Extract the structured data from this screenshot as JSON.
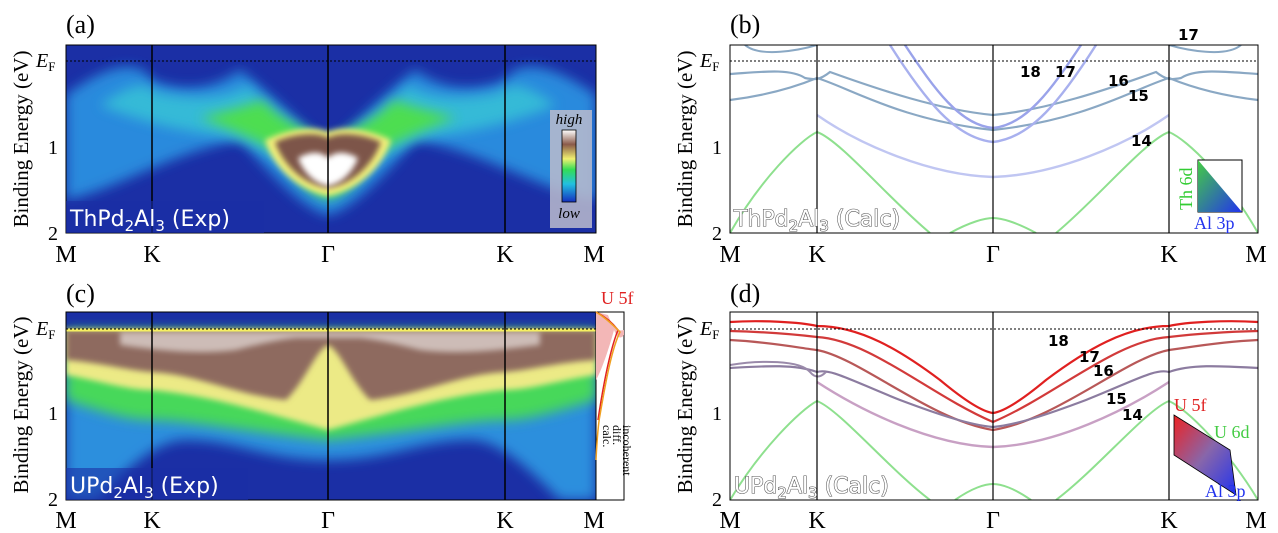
{
  "figure": {
    "panels": [
      {
        "id": "a",
        "label": "(a)",
        "kind": "exp",
        "sample_main": "ThPd",
        "sample_sub1": "2",
        "sample_mid": "Al",
        "sample_sub2": "3",
        "sample_tail": " (Exp)"
      },
      {
        "id": "b",
        "label": "(b)",
        "kind": "calc",
        "sample_main": "ThPd",
        "sample_sub1": "2",
        "sample_mid": "Al",
        "sample_sub2": "3",
        "sample_tail": " (Calc)"
      },
      {
        "id": "c",
        "label": "(c)",
        "kind": "exp",
        "sample_main": "UPd",
        "sample_sub1": "2",
        "sample_mid": "Al",
        "sample_sub2": "3",
        "sample_tail": " (Exp)"
      },
      {
        "id": "d",
        "label": "(d)",
        "kind": "calc",
        "sample_main": "UPd",
        "sample_sub1": "2",
        "sample_mid": "Al",
        "sample_sub2": "3",
        "sample_tail": " (Calc)"
      }
    ],
    "ylabel": "Binding Energy (eV)",
    "ef_label_main": "E",
    "ef_label_sub": "F",
    "y_ticks": [
      "1",
      "2"
    ],
    "k_ticks": [
      "M",
      "K",
      "Γ",
      "K",
      "M"
    ],
    "colorbar": {
      "high": "high",
      "low": "low"
    },
    "orbitals_b": {
      "top": "Th 6d",
      "bottom": "Al 3p"
    },
    "orbitals_d": {
      "top": "U 5f",
      "right": "U 6d",
      "bottom": "Al 3p"
    },
    "side_panel": {
      "title": "U 5f",
      "legend": [
        "diff.",
        "calc.",
        "incoherent"
      ]
    },
    "band_labels_b": [
      "18",
      "17",
      "16",
      "15",
      "14",
      "17"
    ],
    "band_labels_d": [
      "18",
      "17",
      "16",
      "15",
      "14"
    ],
    "colors": {
      "exp_background": "#1a2a9a",
      "te_band": "#8aaabb",
      "al_band": "#8899ee",
      "th_band": "#66dd66",
      "u5f_band": "#ee2222",
      "grid": "#000000"
    }
  },
  "chart_data": [
    {
      "type": "heatmap",
      "panel": "(a)",
      "title": "ThPd2Al3 (Exp)",
      "ylabel": "Binding Energy (eV)",
      "x_ticks": [
        "M",
        "K",
        "Γ",
        "K",
        "M"
      ],
      "x": [
        0,
        1,
        2,
        3,
        4
      ],
      "ylim": [
        2,
        -0.2
      ],
      "ridges": [
        {
          "name": "main",
          "points": [
            [
              0,
              0.2
            ],
            [
              0.5,
              0.1
            ],
            [
              1,
              0.5
            ],
            [
              1.5,
              0.35
            ],
            [
              2,
              1.25
            ],
            [
              2.5,
              0.35
            ],
            [
              3,
              0.5
            ],
            [
              3.5,
              0.1
            ],
            [
              4,
              0.2
            ]
          ]
        }
      ],
      "colorbar_labels": [
        "high",
        "low"
      ]
    },
    {
      "type": "line",
      "panel": "(b)",
      "title": "ThPd2Al3 (Calc)",
      "ylabel": "Binding Energy (eV)",
      "x_ticks": [
        "M",
        "K",
        "Γ",
        "K",
        "M"
      ],
      "ylim": [
        2,
        -0.2
      ],
      "series": [
        {
          "name": "14",
          "x": [
            0,
            1,
            2,
            3,
            4
          ],
          "y": [
            0.5,
            0.35,
            0.75,
            0.35,
            0.5
          ]
        },
        {
          "name": "15",
          "x": [
            0,
            1,
            2,
            3,
            4
          ],
          "y": [
            0.15,
            0.2,
            0.95,
            0.2,
            0.15
          ]
        },
        {
          "name": "16",
          "x": [
            0,
            1,
            2,
            3,
            4
          ],
          "y": [
            0.2,
            0.4,
            0.8,
            0.4,
            0.2
          ]
        },
        {
          "name": "17",
          "x": [
            0,
            1,
            2,
            3,
            4
          ],
          "y": [
            -0.2,
            -0.05,
            0.75,
            -0.05,
            -0.2
          ]
        },
        {
          "name": "18",
          "x": [
            0,
            1,
            2,
            3,
            4
          ],
          "y": [
            -0.2,
            0.2,
            1.35,
            0.2,
            -0.2
          ]
        },
        {
          "name": "Th 6d",
          "x": [
            0,
            1,
            2,
            3,
            4
          ],
          "y": [
            2.0,
            0.85,
            1.8,
            0.85,
            2.0
          ]
        }
      ]
    },
    {
      "type": "heatmap",
      "panel": "(c)",
      "title": "UPd2Al3 (Exp)",
      "ylabel": "Binding Energy (eV)",
      "x_ticks": [
        "M",
        "K",
        "Γ",
        "K",
        "M"
      ],
      "ylim": [
        2,
        -0.2
      ],
      "ridges": [
        {
          "name": "flat",
          "points": [
            [
              0,
              0.0
            ],
            [
              1,
              0.05
            ],
            [
              2,
              0.05
            ],
            [
              3,
              0.05
            ],
            [
              4,
              0.0
            ]
          ]
        },
        {
          "name": "dispersive",
          "points": [
            [
              0,
              0.4
            ],
            [
              1,
              0.3
            ],
            [
              1.5,
              0.5
            ],
            [
              2,
              1.0
            ],
            [
              2.5,
              0.5
            ],
            [
              3,
              0.3
            ],
            [
              4,
              0.4
            ]
          ]
        }
      ],
      "side_legend": [
        "diff.",
        "calc.",
        "incoherent"
      ],
      "side_title": "U 5f"
    },
    {
      "type": "line",
      "panel": "(d)",
      "title": "UPd2Al3 (Calc)",
      "ylabel": "Binding Energy (eV)",
      "x_ticks": [
        "M",
        "K",
        "Γ",
        "K",
        "M"
      ],
      "ylim": [
        2,
        -0.2
      ],
      "series": [
        {
          "name": "14",
          "x": [
            0,
            1,
            2,
            3,
            4
          ],
          "y": [
            0.4,
            0.55,
            1.05,
            0.55,
            0.4
          ]
        },
        {
          "name": "15",
          "x": [
            0,
            1,
            2,
            3,
            4
          ],
          "y": [
            0.3,
            0.5,
            1.5,
            0.5,
            0.3
          ]
        },
        {
          "name": "16",
          "x": [
            0,
            1,
            2,
            3,
            4
          ],
          "y": [
            0.15,
            0.1,
            1.15,
            0.1,
            0.15
          ]
        },
        {
          "name": "17",
          "x": [
            0,
            1,
            2,
            3,
            4
          ],
          "y": [
            0.05,
            0.0,
            1.0,
            0.0,
            0.05
          ]
        },
        {
          "name": "18",
          "x": [
            0,
            1,
            2,
            3,
            4
          ],
          "y": [
            -0.1,
            0.0,
            0.95,
            0.0,
            -0.1
          ]
        },
        {
          "name": "U 6d",
          "x": [
            0,
            1,
            2,
            3,
            4
          ],
          "y": [
            2.0,
            0.85,
            1.8,
            0.85,
            2.0
          ]
        }
      ]
    }
  ]
}
